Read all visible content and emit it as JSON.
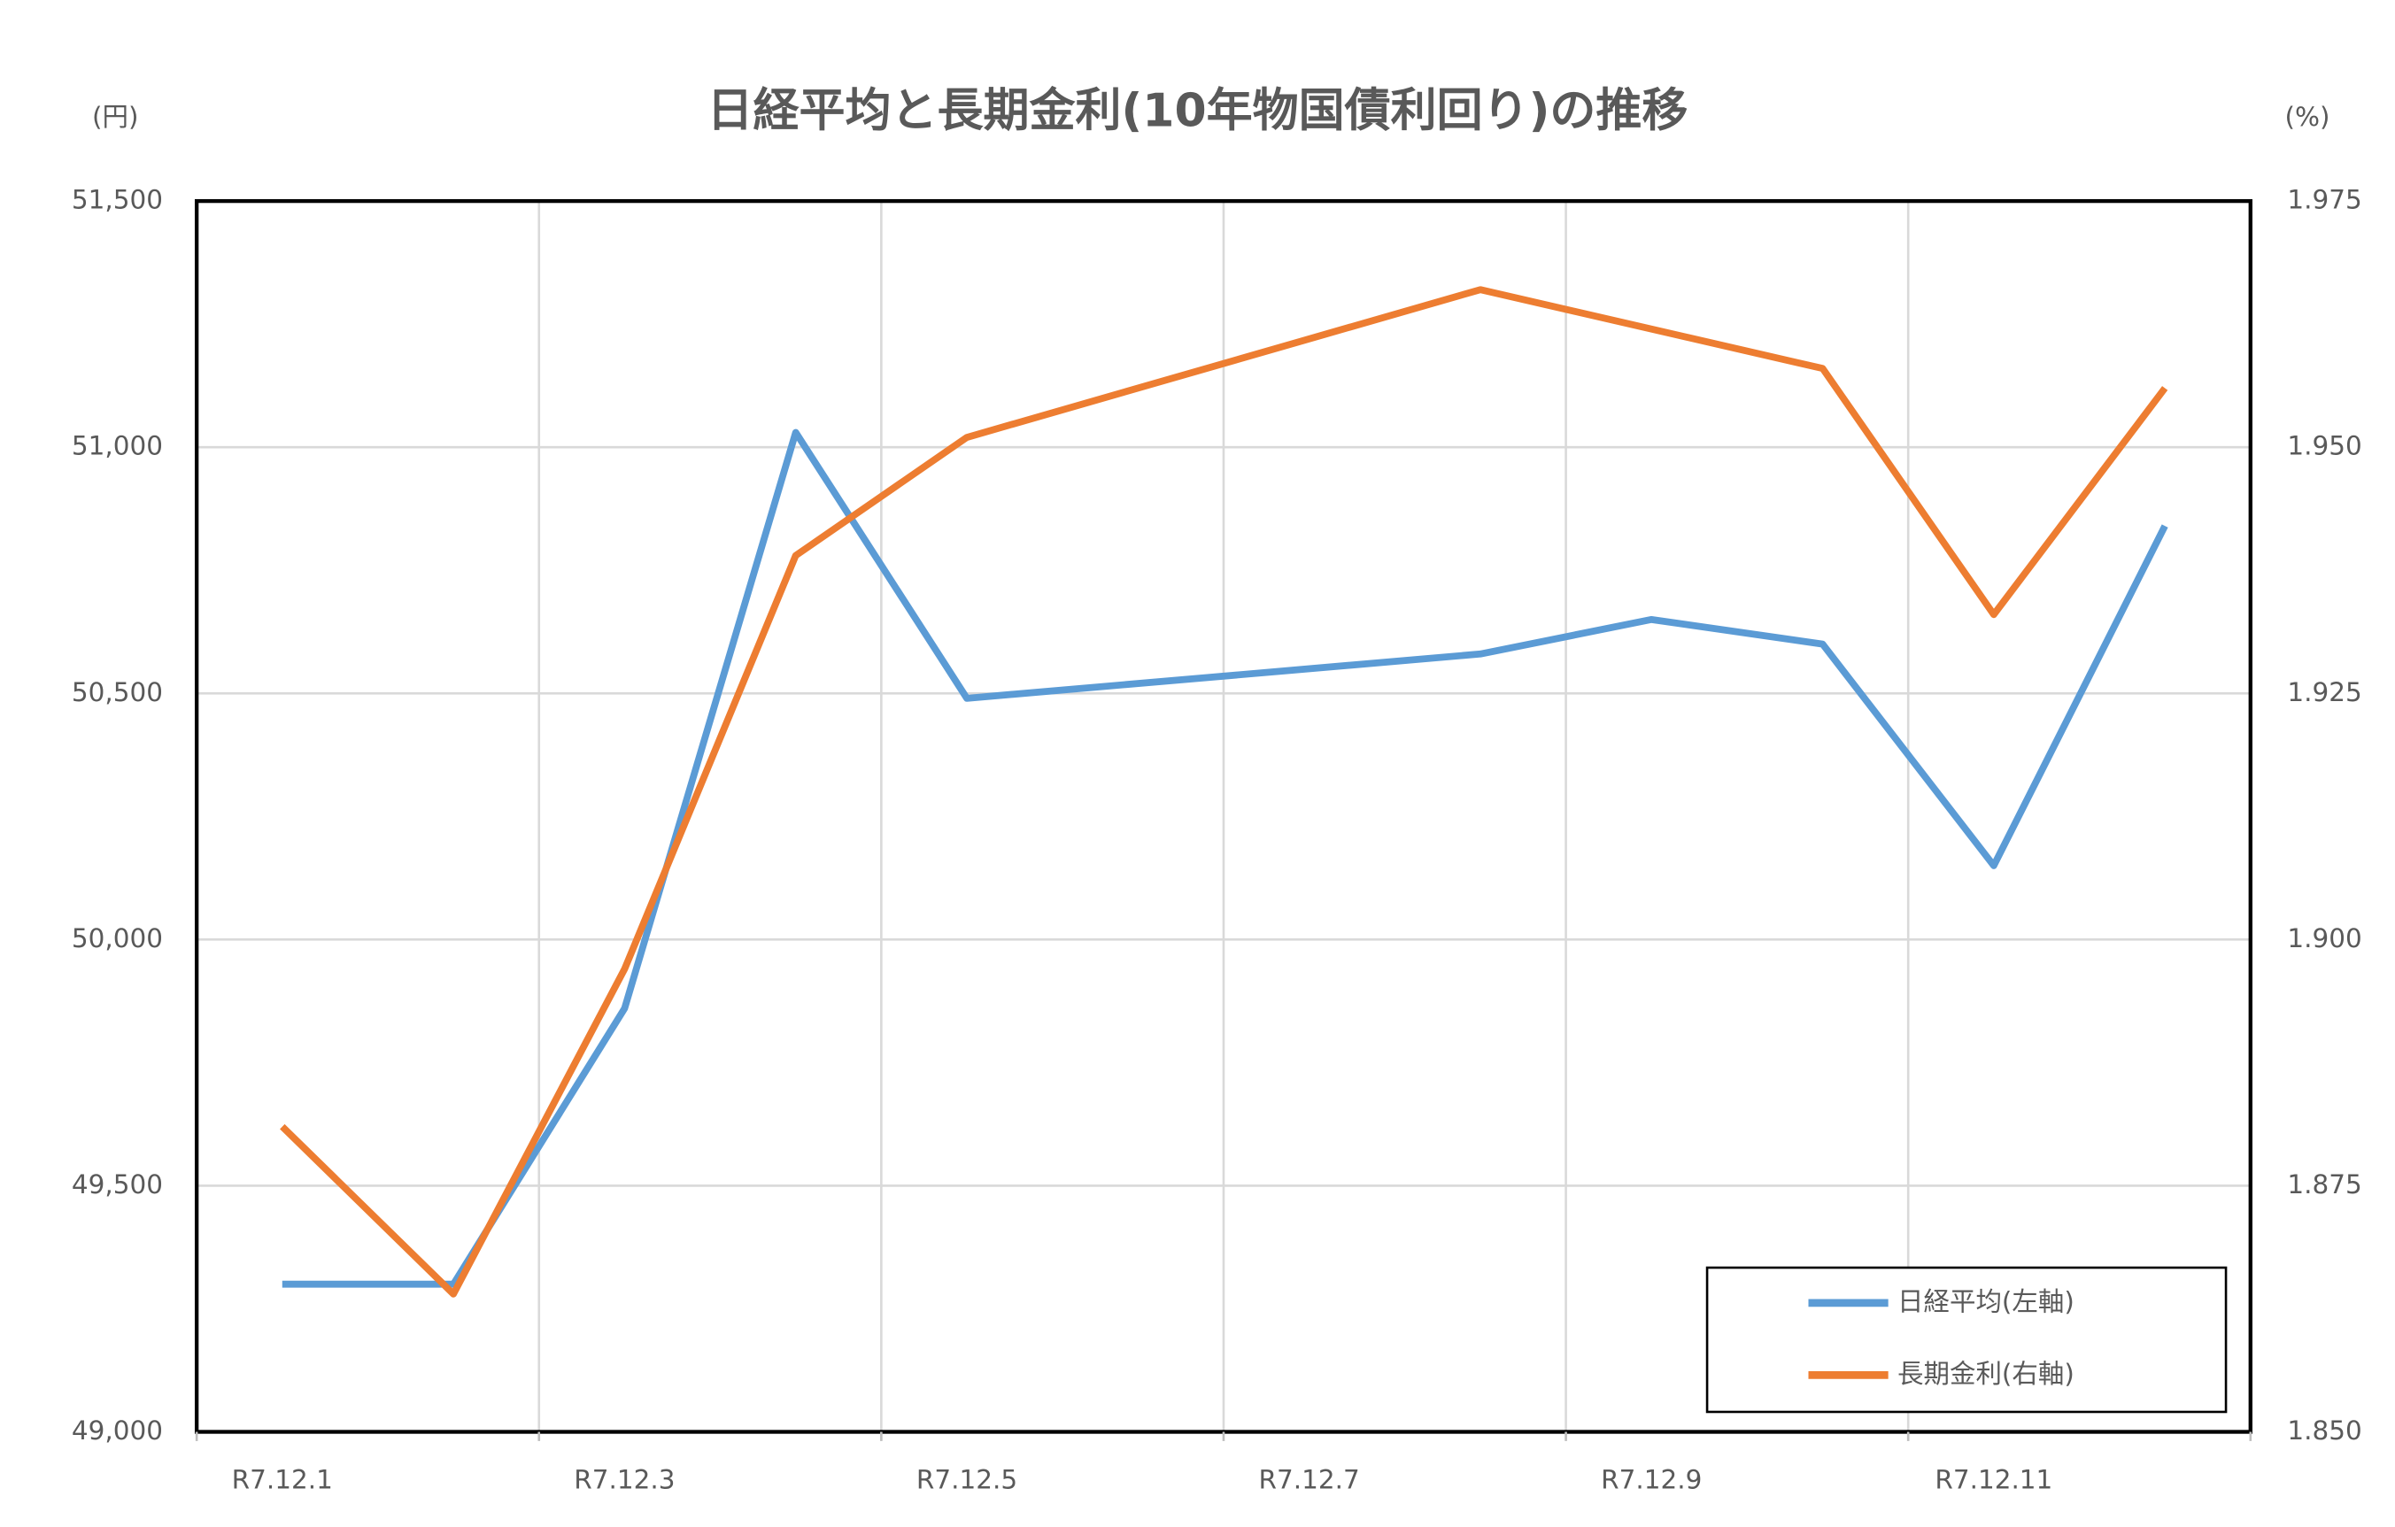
{
  "chart_data": {
    "type": "line",
    "title": "日経平均と長期金利(10年物国債利回り)の推移",
    "y_unit": "(円)",
    "y2_unit": "(%)",
    "categories": [
      "R7.12.1",
      null,
      "R7.12.3",
      null,
      "R7.12.5",
      null,
      "R7.12.7",
      null,
      "R7.12.9",
      null,
      "R7.12.11",
      null
    ],
    "series": [
      {
        "name": "日経平均(左軸)",
        "color": "#5b9bd5",
        "values": [
          49300,
          49300,
          49860,
          51030,
          50490,
          null,
          null,
          50580,
          50650,
          50600,
          50150,
          50840
        ]
      },
      {
        "name": "長期金利(右軸)",
        "color": "#ed7d31",
        "axis": "y2",
        "values": [
          1.881,
          1.864,
          1.897,
          1.939,
          1.951,
          null,
          null,
          1.966,
          null,
          1.958,
          1.933,
          1.956
        ]
      }
    ],
    "span_gaps": true,
    "ylim": [
      49000,
      51500
    ],
    "yticks": [
      {
        "value": 49000,
        "label": "49,000"
      },
      {
        "value": 49500,
        "label": "49,500"
      },
      {
        "value": 50000,
        "label": "50,000"
      },
      {
        "value": 50500,
        "label": "50,500"
      },
      {
        "value": 51000,
        "label": "51,000"
      },
      {
        "value": 51500,
        "label": "51,500"
      }
    ],
    "y2lim": [
      1.85,
      1.975
    ],
    "y2ticks": [
      {
        "value": 1.85,
        "label": "1.850"
      },
      1.875,
      {
        "value": 1.9,
        "label": "1.900"
      },
      1.925,
      {
        "value": 1.95,
        "label": "1.950"
      },
      1.975
    ],
    "grid": true,
    "legend": "lower right"
  }
}
